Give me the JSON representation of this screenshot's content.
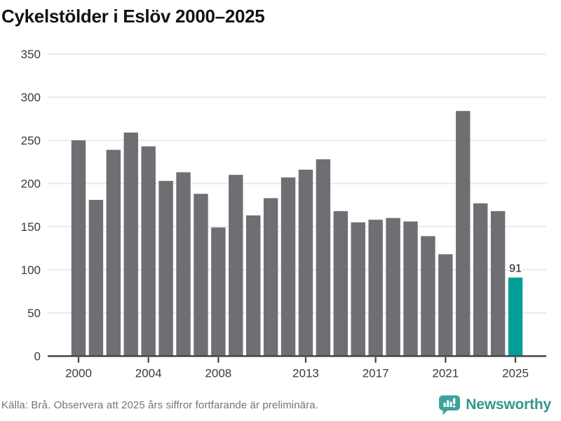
{
  "chart_data": {
    "type": "bar",
    "title": "Cykelstölder i Eslöv 2000–2025",
    "categories": [
      2000,
      2001,
      2002,
      2003,
      2004,
      2005,
      2006,
      2007,
      2008,
      2009,
      2010,
      2011,
      2012,
      2013,
      2014,
      2015,
      2016,
      2017,
      2018,
      2019,
      2020,
      2021,
      2022,
      2023,
      2024,
      2025
    ],
    "values": [
      250,
      181,
      239,
      259,
      243,
      203,
      213,
      188,
      149,
      210,
      163,
      183,
      207,
      216,
      228,
      168,
      155,
      158,
      160,
      156,
      139,
      118,
      284,
      177,
      168,
      91
    ],
    "highlight_category": 2025,
    "highlight_value_label": "91",
    "xlabel": "",
    "ylabel": "",
    "ylim": [
      0,
      350
    ],
    "y_ticks": [
      0,
      50,
      100,
      150,
      200,
      250,
      300,
      350
    ],
    "x_ticks": [
      2000,
      2004,
      2008,
      2013,
      2017,
      2021,
      2025
    ],
    "grid": "horizontal",
    "legend": "none"
  },
  "footer": {
    "source": "Källa: Brå. Observera att 2025 års siffror fortfarande är preliminära.",
    "logo_text": "Newsworthy"
  },
  "colors": {
    "bar": "#6E6E73",
    "highlight": "#009E96",
    "gridline": "#E8E8E8",
    "axis": "#454545",
    "tick_label": "#3A3A3A",
    "value_label": "#1A1A1A",
    "title": "#131313",
    "source_text": "#757575",
    "logo_icon": "#3BA39B",
    "logo_text": "#37958E"
  }
}
